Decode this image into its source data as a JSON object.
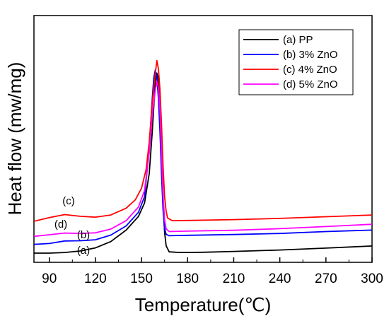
{
  "chart_data": {
    "type": "line",
    "title": "",
    "xlabel": "Temperature(℃)",
    "ylabel": "Heat flow (mw/mg)",
    "xlim": [
      80,
      300
    ],
    "ylim": [
      0,
      100
    ],
    "xticks": [
      90,
      120,
      150,
      180,
      210,
      240,
      270,
      300
    ],
    "yticks_shown": false,
    "grid": false,
    "legend_position": "top-right",
    "series": [
      {
        "name": "(a) PP",
        "label": "(a)",
        "color": "#000000",
        "points": [
          [
            80,
            0.0
          ],
          [
            90,
            0.0
          ],
          [
            100,
            0.3
          ],
          [
            110,
            1.0
          ],
          [
            120,
            2.5
          ],
          [
            130,
            5.5
          ],
          [
            140,
            11.0
          ],
          [
            148,
            17.5
          ],
          [
            152,
            24.0
          ],
          [
            155,
            38.0
          ],
          [
            157,
            58.0
          ],
          [
            159,
            82.0
          ],
          [
            160,
            86.0
          ],
          [
            161,
            83.0
          ],
          [
            162,
            70.0
          ],
          [
            163,
            45.0
          ],
          [
            164,
            24.0
          ],
          [
            165,
            10.0
          ],
          [
            166,
            3.5
          ],
          [
            168,
            0.6
          ],
          [
            175,
            0.3
          ],
          [
            190,
            0.4
          ],
          [
            210,
            0.8
          ],
          [
            240,
            1.5
          ],
          [
            270,
            2.4
          ],
          [
            300,
            3.4
          ]
        ]
      },
      {
        "name": "(b) 3% ZnO",
        "label": "(b)",
        "color": "#0000ff",
        "points": [
          [
            80,
            4.2
          ],
          [
            90,
            4.6
          ],
          [
            100,
            5.8
          ],
          [
            110,
            5.9
          ],
          [
            120,
            6.4
          ],
          [
            130,
            8.6
          ],
          [
            140,
            13.0
          ],
          [
            148,
            19.5
          ],
          [
            152,
            27.0
          ],
          [
            155,
            50.0
          ],
          [
            157,
            74.0
          ],
          [
            158,
            84.0
          ],
          [
            159,
            87.5
          ],
          [
            160,
            84.0
          ],
          [
            161,
            74.0
          ],
          [
            162,
            58.0
          ],
          [
            163,
            38.0
          ],
          [
            164,
            21.0
          ],
          [
            165,
            12.0
          ],
          [
            166,
            9.0
          ],
          [
            168,
            8.3
          ],
          [
            180,
            8.5
          ],
          [
            210,
            8.9
          ],
          [
            240,
            9.4
          ],
          [
            270,
            10.3
          ],
          [
            300,
            11.0
          ]
        ]
      },
      {
        "name": "(c) 4% ZnO",
        "label": "(c)",
        "color": "#ff0000",
        "points": [
          [
            80,
            15.2
          ],
          [
            90,
            17.0
          ],
          [
            100,
            18.4
          ],
          [
            110,
            17.6
          ],
          [
            120,
            17.2
          ],
          [
            130,
            18.2
          ],
          [
            140,
            21.5
          ],
          [
            146,
            25.5
          ],
          [
            150,
            31.0
          ],
          [
            153,
            40.0
          ],
          [
            155,
            53.0
          ],
          [
            157,
            72.0
          ],
          [
            159,
            86.0
          ],
          [
            160,
            92.0
          ],
          [
            161,
            88.0
          ],
          [
            162,
            78.0
          ],
          [
            163,
            62.0
          ],
          [
            164,
            42.0
          ],
          [
            165,
            27.0
          ],
          [
            166,
            20.0
          ],
          [
            167,
            16.8
          ],
          [
            170,
            15.5
          ],
          [
            180,
            15.6
          ],
          [
            210,
            16.0
          ],
          [
            240,
            16.6
          ],
          [
            270,
            17.4
          ],
          [
            300,
            18.2
          ]
        ]
      },
      {
        "name": "(d) 5% ZnO",
        "label": "(d)",
        "color": "#ff00ff",
        "points": [
          [
            80,
            8.0
          ],
          [
            90,
            8.8
          ],
          [
            100,
            9.6
          ],
          [
            110,
            9.4
          ],
          [
            120,
            9.7
          ],
          [
            130,
            11.5
          ],
          [
            140,
            15.5
          ],
          [
            148,
            22.0
          ],
          [
            152,
            30.0
          ],
          [
            155,
            48.0
          ],
          [
            157,
            66.0
          ],
          [
            159,
            78.0
          ],
          [
            160,
            82.0
          ],
          [
            161,
            79.0
          ],
          [
            162,
            68.0
          ],
          [
            163,
            48.0
          ],
          [
            164,
            28.0
          ],
          [
            165,
            16.0
          ],
          [
            166,
            11.6
          ],
          [
            168,
            10.3
          ],
          [
            180,
            10.5
          ],
          [
            210,
            10.9
          ],
          [
            240,
            11.7
          ],
          [
            270,
            12.7
          ],
          [
            300,
            13.8
          ]
        ]
      }
    ]
  }
}
